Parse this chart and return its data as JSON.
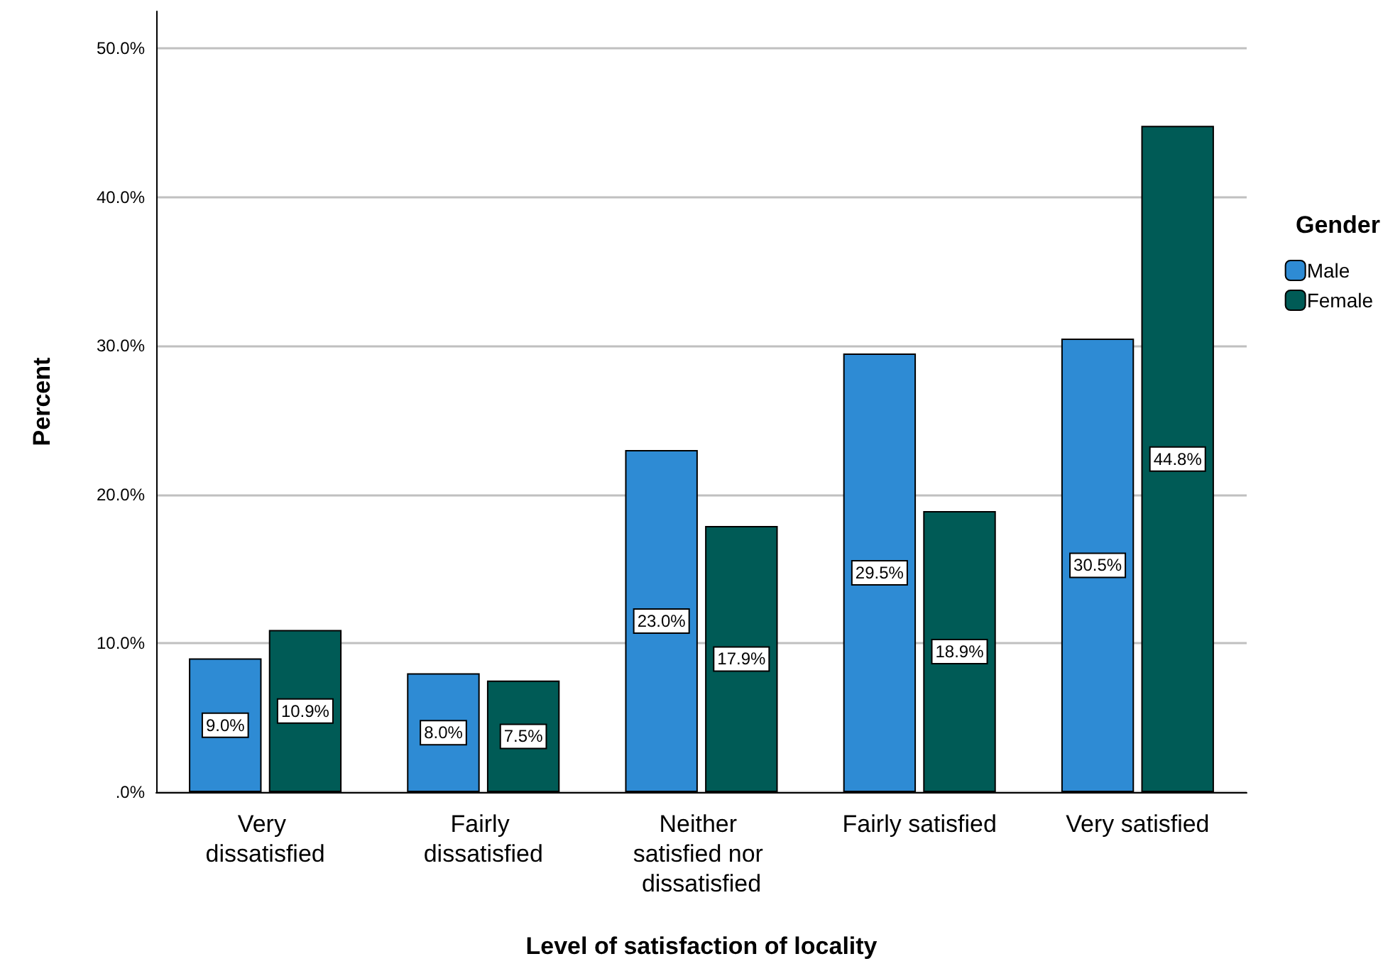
{
  "chart_data": {
    "type": "bar",
    "xlabel": "Level of satisfaction of locality",
    "ylabel": "Percent",
    "legend_title": "Gender",
    "categories": [
      "Very dissatisfied",
      "Fairly dissatisfied",
      "Neither satisfied nor dissatisfied",
      "Fairly satisfied",
      "Very satisfied"
    ],
    "series": [
      {
        "name": "Male",
        "color": "#2e8bd4",
        "values": [
          9.0,
          8.0,
          23.0,
          29.5,
          30.5
        ],
        "value_labels": [
          "9.0%",
          "8.0%",
          "23.0%",
          "29.5%",
          "30.5%"
        ]
      },
      {
        "name": "Female",
        "color": "#005b56",
        "values": [
          10.9,
          7.5,
          17.9,
          18.9,
          44.8
        ],
        "value_labels": [
          "10.9%",
          "7.5%",
          "17.9%",
          "18.9%",
          "44.8%"
        ]
      }
    ],
    "ylim": [
      0,
      52.5
    ],
    "yticks": [
      {
        "value": 0,
        "label": ".0%"
      },
      {
        "value": 10,
        "label": "10.0%"
      },
      {
        "value": 20,
        "label": "20.0%"
      },
      {
        "value": 30,
        "label": "30.0%"
      },
      {
        "value": 40,
        "label": "40.0%"
      },
      {
        "value": 50,
        "label": "50.0%"
      }
    ],
    "grid": "y",
    "legend": "right"
  }
}
